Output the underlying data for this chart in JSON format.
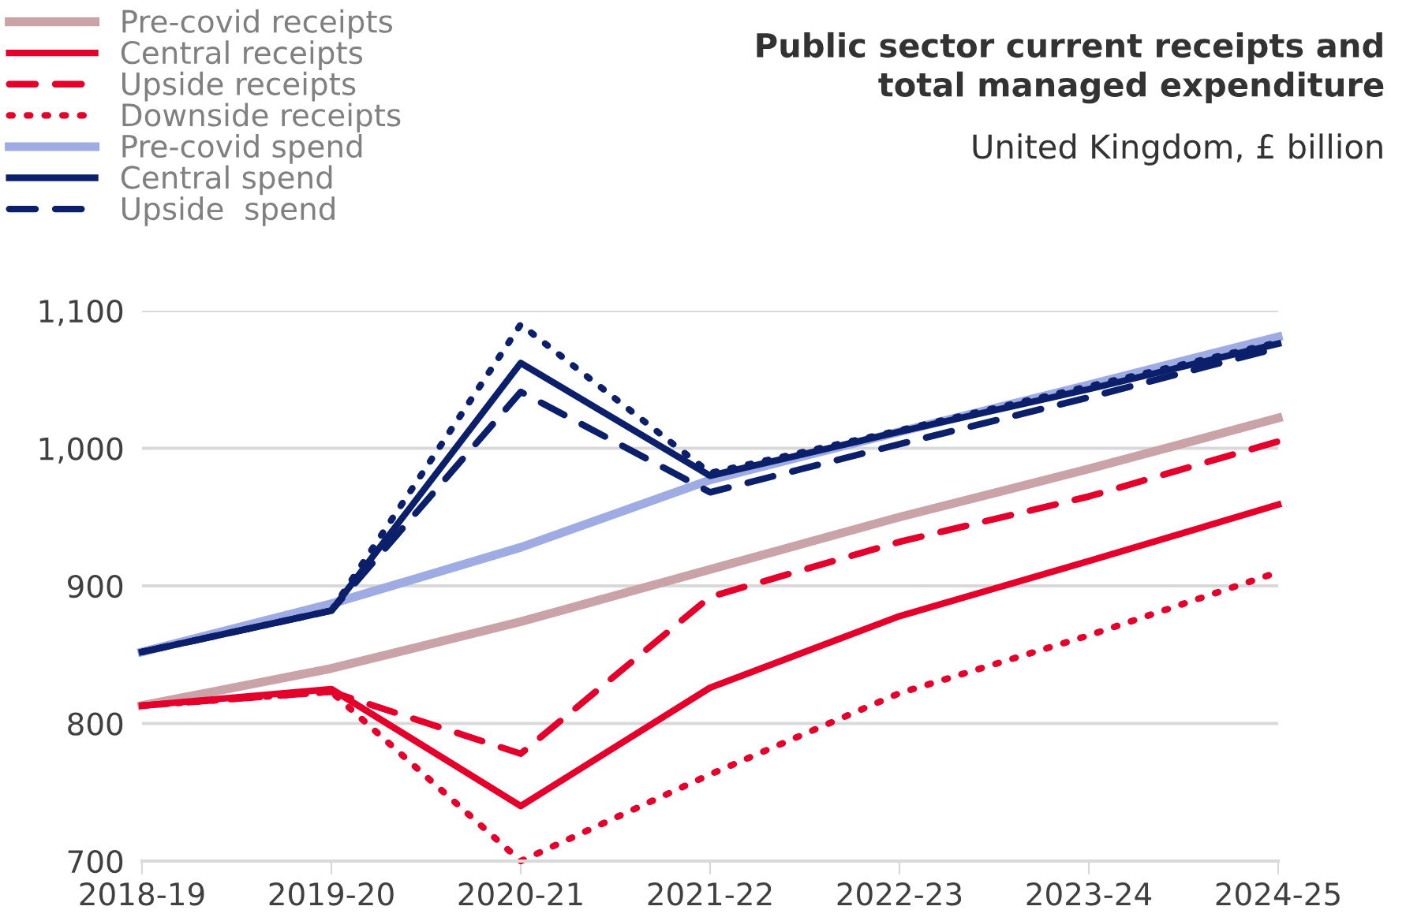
{
  "chart_data": {
    "type": "line",
    "title": "Public sector current receipts and\ntotal managed expenditure",
    "subtitle": "United Kingdom, £ billion",
    "categories": [
      "2018-19",
      "2019-20",
      "2020-21",
      "2021-22",
      "2022-23",
      "2023-24",
      "2024-25"
    ],
    "ylim": [
      700,
      1100
    ],
    "yticks": [
      700,
      800,
      900,
      {
        "value": 1000,
        "label": "1,000"
      },
      {
        "value": 1100,
        "label": "1,100"
      }
    ],
    "grid": "y",
    "legend": "top left",
    "marker": "none",
    "series": [
      {
        "name": "Pre-covid receipts",
        "color": "#c9a3a8",
        "line_style": "solid",
        "values": [
          813,
          840,
          874,
          912,
          950,
          985,
          1022
        ]
      },
      {
        "name": "Central receipts",
        "color": "#e4002b",
        "line_style": "solid",
        "values": [
          813,
          825,
          740,
          826,
          878,
          918,
          959
        ]
      },
      {
        "name": "Upside receipts",
        "color": "#e4002b",
        "line_style": "dashed",
        "values": [
          813,
          823,
          778,
          892,
          932,
          965,
          1005
        ]
      },
      {
        "name": "Downside receipts",
        "color": "#e4002b",
        "line_style": "dotted",
        "values": [
          813,
          823,
          700,
          763,
          822,
          864,
          910
        ]
      },
      {
        "name": "Pre-covid spend",
        "color": "#9fabe3",
        "line_style": "solid",
        "values": [
          852,
          887,
          928,
          977,
          1012,
          1046,
          1081
        ]
      },
      {
        "name": "Central spend",
        "color": "#0b1f6b",
        "line_style": "solid",
        "values": [
          852,
          882,
          1062,
          980,
          1012,
          1043,
          1076
        ]
      },
      {
        "name": "Upside  spend",
        "color": "#0b1f6b",
        "line_style": "dashed",
        "values": [
          852,
          882,
          1041,
          968,
          1003,
          1037,
          1073
        ]
      },
      {
        "color": "#0b1f6b",
        "line_style": "dotted",
        "values": [
          852,
          882,
          1090,
          982,
          1013,
          1045,
          1077
        ]
      }
    ]
  }
}
